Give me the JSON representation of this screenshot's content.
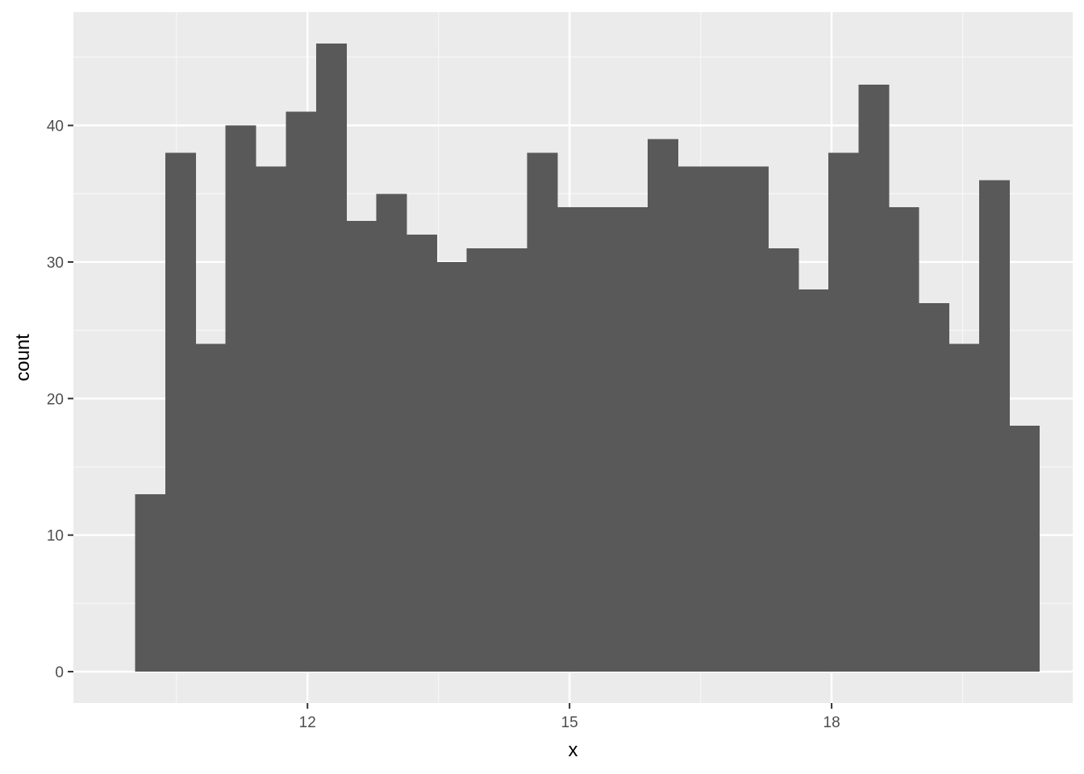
{
  "chart_data": {
    "type": "bar",
    "subtype": "histogram",
    "title": "",
    "xlabel": "x",
    "ylabel": "count",
    "bin_width": 0.345,
    "bins": [
      {
        "x": 10.2,
        "count": 13
      },
      {
        "x": 10.545,
        "count": 38
      },
      {
        "x": 10.89,
        "count": 24
      },
      {
        "x": 11.235,
        "count": 40
      },
      {
        "x": 11.58,
        "count": 37
      },
      {
        "x": 11.925,
        "count": 41
      },
      {
        "x": 12.27,
        "count": 46
      },
      {
        "x": 12.615,
        "count": 33
      },
      {
        "x": 12.96,
        "count": 35
      },
      {
        "x": 13.305,
        "count": 32
      },
      {
        "x": 13.65,
        "count": 30
      },
      {
        "x": 13.995,
        "count": 31
      },
      {
        "x": 14.34,
        "count": 31
      },
      {
        "x": 14.685,
        "count": 38
      },
      {
        "x": 15.03,
        "count": 34
      },
      {
        "x": 15.375,
        "count": 34
      },
      {
        "x": 15.72,
        "count": 34
      },
      {
        "x": 16.065,
        "count": 39
      },
      {
        "x": 16.41,
        "count": 37
      },
      {
        "x": 16.755,
        "count": 37
      },
      {
        "x": 17.1,
        "count": 37
      },
      {
        "x": 17.445,
        "count": 31
      },
      {
        "x": 17.79,
        "count": 28
      },
      {
        "x": 18.135,
        "count": 38
      },
      {
        "x": 18.48,
        "count": 43
      },
      {
        "x": 18.825,
        "count": 34
      },
      {
        "x": 19.17,
        "count": 27
      },
      {
        "x": 19.515,
        "count": 24
      },
      {
        "x": 19.86,
        "count": 36
      },
      {
        "x": 20.205,
        "count": 18
      }
    ],
    "xlim": [
      9.32,
      20.76
    ],
    "ylim": [
      -2.3,
      48.3
    ],
    "x_ticks": [
      12,
      15,
      18
    ],
    "x_tick_labels": [
      "12",
      "15",
      "18"
    ],
    "x_minor_ticks": [
      10.5,
      13.5,
      16.5,
      19.5
    ],
    "y_ticks": [
      0,
      10,
      20,
      30,
      40
    ],
    "y_tick_labels": [
      "0",
      "10",
      "20",
      "30",
      "40"
    ],
    "y_minor_ticks": [
      5,
      15,
      25,
      35,
      45
    ],
    "grid": true,
    "legend": "none",
    "colors": {
      "panel_background": "#ebebeb",
      "grid_major": "#ffffff",
      "grid_minor": "#f7f7f7",
      "bar_fill": "#595959",
      "tick_label": "#4d4d4d",
      "tick_mark": "#333333",
      "axis_title": "#000000"
    }
  }
}
